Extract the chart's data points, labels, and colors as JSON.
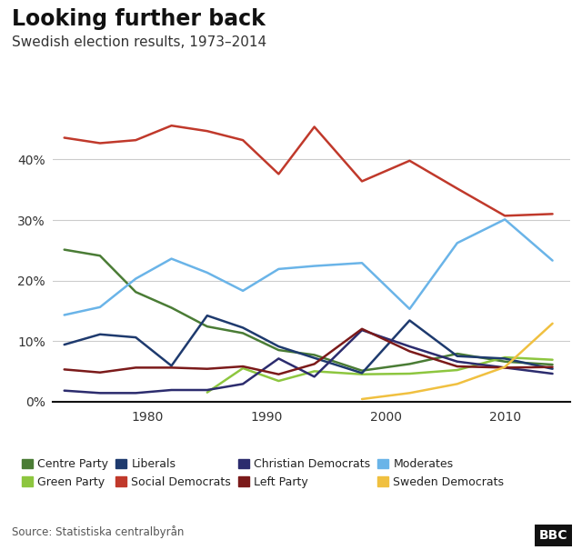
{
  "title": "Looking further back",
  "subtitle": "Swedish election results, 1973–2014",
  "source": "Source: Statistiska centralbyrån",
  "years": [
    1973,
    1976,
    1979,
    1982,
    1985,
    1988,
    1991,
    1994,
    1998,
    2002,
    2006,
    2010,
    2014
  ],
  "parties": {
    "Centre Party": {
      "color": "#4a7c35",
      "values": [
        25.1,
        24.1,
        18.1,
        15.5,
        12.4,
        11.3,
        8.5,
        7.7,
        5.1,
        6.2,
        7.9,
        6.6,
        6.1
      ]
    },
    "Green Party": {
      "color": "#8dc63f",
      "values": [
        null,
        null,
        null,
        null,
        1.5,
        5.5,
        3.4,
        5.0,
        4.5,
        4.6,
        5.2,
        7.3,
        6.9
      ]
    },
    "Liberals": {
      "color": "#1e3a6e",
      "values": [
        9.4,
        11.1,
        10.6,
        5.9,
        14.2,
        12.2,
        9.1,
        7.2,
        4.7,
        13.4,
        7.5,
        7.1,
        5.4
      ]
    },
    "Social Democrats": {
      "color": "#c0392b",
      "values": [
        43.6,
        42.7,
        43.2,
        45.6,
        44.7,
        43.2,
        37.6,
        45.4,
        36.4,
        39.8,
        35.2,
        30.7,
        31.0
      ]
    },
    "Christian Democrats": {
      "color": "#2c2c6e",
      "values": [
        1.8,
        1.4,
        1.4,
        1.9,
        1.9,
        2.9,
        7.1,
        4.1,
        11.8,
        9.1,
        6.6,
        5.6,
        4.6
      ]
    },
    "Left Party": {
      "color": "#7b1a1a",
      "values": [
        5.3,
        4.8,
        5.6,
        5.6,
        5.4,
        5.8,
        4.5,
        6.2,
        12.0,
        8.3,
        5.8,
        5.6,
        5.7
      ]
    },
    "Moderates": {
      "color": "#6ab4e8",
      "values": [
        14.3,
        15.6,
        20.3,
        23.6,
        21.3,
        18.3,
        21.9,
        22.4,
        22.9,
        15.3,
        26.2,
        30.1,
        23.3
      ]
    },
    "Sweden Democrats": {
      "color": "#f0c040",
      "values": [
        null,
        null,
        null,
        null,
        null,
        null,
        null,
        null,
        0.4,
        1.4,
        2.9,
        5.7,
        12.9
      ]
    }
  },
  "ylim": [
    0,
    50
  ],
  "yticks": [
    0,
    10,
    20,
    30,
    40
  ],
  "ytick_labels": [
    "0%",
    "10%",
    "20%",
    "30%",
    "40%"
  ],
  "background_color": "#ffffff",
  "grid_color": "#cccccc",
  "title_fontsize": 17,
  "subtitle_fontsize": 11,
  "legend_order": [
    "Centre Party",
    "Green Party",
    "Liberals",
    "Social Democrats",
    "Christian Democrats",
    "Left Party",
    "Moderates",
    "Sweden Democrats"
  ]
}
